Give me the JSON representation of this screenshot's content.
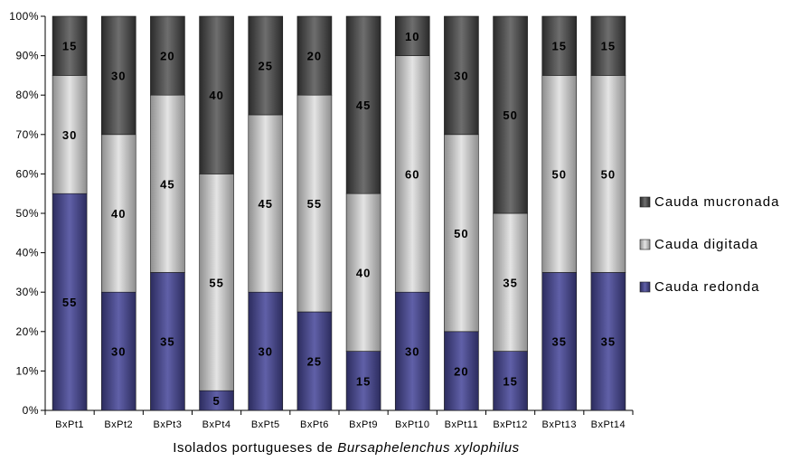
{
  "chart_data": {
    "type": "bar",
    "stacked": true,
    "percent": true,
    "categories": [
      "BxPt1",
      "BxPt2",
      "BxPt3",
      "BxPt4",
      "BxPt5",
      "BxPt6",
      "BxPt9",
      "BxPt10",
      "BxPt11",
      "BxPt12",
      "BxPt13",
      "BxPt14"
    ],
    "series": [
      {
        "name": "Cauda redonda",
        "color": "#4a4a8a",
        "values": [
          55,
          30,
          35,
          5,
          30,
          25,
          15,
          30,
          20,
          15,
          35,
          35
        ]
      },
      {
        "name": "Cauda digitada",
        "color": "#c4c4c4",
        "values": [
          30,
          40,
          45,
          55,
          45,
          55,
          40,
          60,
          50,
          35,
          50,
          50
        ]
      },
      {
        "name": "Cauda mucronada",
        "color": "#4e4e4e",
        "values": [
          15,
          30,
          20,
          40,
          25,
          20,
          45,
          10,
          30,
          50,
          15,
          15
        ]
      }
    ],
    "y_ticks": [
      "0%",
      "10%",
      "20%",
      "30%",
      "40%",
      "50%",
      "60%",
      "70%",
      "80%",
      "90%",
      "100%"
    ],
    "ylim": [
      0,
      100
    ],
    "xlabel_prefix": "Isolados portugueses de ",
    "xlabel_italic": "Bursaphelenchus xylophilus",
    "legend_position": "right",
    "legend_order": [
      "Cauda mucronada",
      "Cauda digitada",
      "Cauda redonda"
    ],
    "grid": false
  }
}
